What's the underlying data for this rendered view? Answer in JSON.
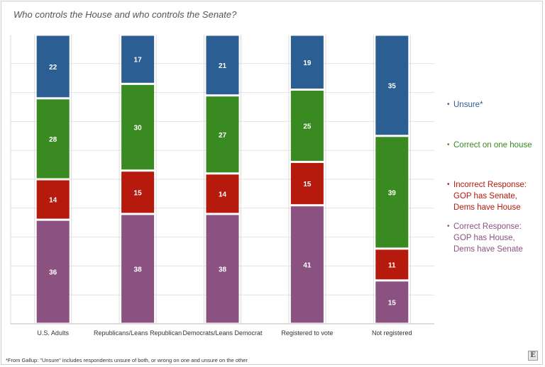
{
  "chart_data": {
    "type": "bar",
    "stacked": true,
    "title": "Who controls the House and who controls the Senate?",
    "categories": [
      "U.S. Adults",
      "Republicans/Leans Republican",
      "Democrats/Leans Democrat",
      "Registered to vote",
      "Not registered"
    ],
    "series": [
      {
        "name": "Correct Response: GOP has House, Dems have Senate",
        "color": "#8b5180",
        "values": [
          36,
          38,
          38,
          41,
          15
        ]
      },
      {
        "name": "Incorrect Response: GOP has Senate, Dems have House",
        "color": "#b51a0c",
        "values": [
          14,
          15,
          14,
          15,
          11
        ]
      },
      {
        "name": "Correct on one house",
        "color": "#3a8a22",
        "values": [
          28,
          30,
          27,
          25,
          39
        ]
      },
      {
        "name": "Unsure*",
        "color": "#2b5e92",
        "values": [
          22,
          17,
          21,
          19,
          35
        ]
      }
    ],
    "ylim": [
      0,
      100
    ],
    "legend_position": "right",
    "footnote": "*From Gallup: \"Unsure\" includes respondents unsure of both, or wrong on one and unsure on the other"
  },
  "legend": [
    {
      "label": "Unsure*",
      "color": "#2b5e92"
    },
    {
      "label": "Correct on one house",
      "color": "#3a8a22"
    },
    {
      "label": "Incorrect Response: GOP has Senate, Dems have House",
      "color": "#b51a0c"
    },
    {
      "label": "Correct Response: GOP has House, Dems have Senate",
      "color": "#8b5180"
    }
  ],
  "logo": {
    "glyph": "E"
  }
}
